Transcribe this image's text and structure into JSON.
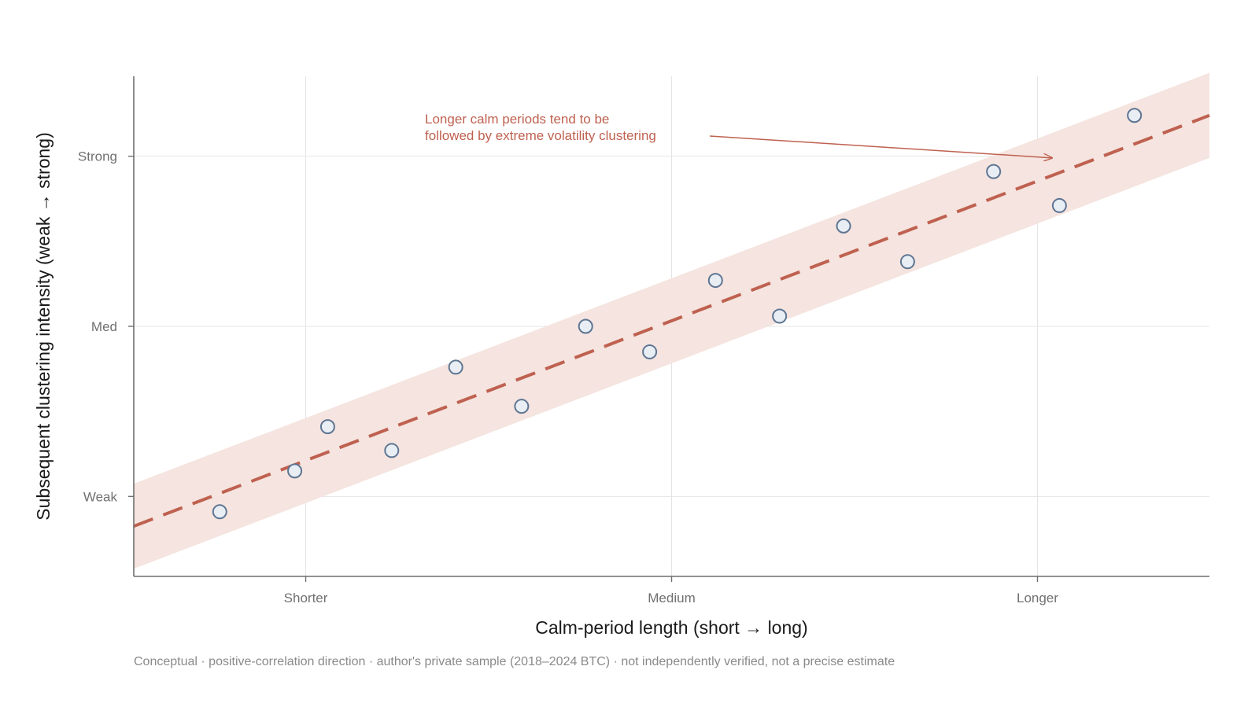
{
  "chart_data": {
    "type": "scatter",
    "xlabel": "Calm-period length (short → long)",
    "ylabel": "Subsequent clustering intensity (weak → strong)",
    "xlim": [
      -0.47,
      2.47
    ],
    "ylim": [
      -0.47,
      2.47
    ],
    "x_ticks": [
      {
        "value": 0,
        "label": "Shorter"
      },
      {
        "value": 1,
        "label": "Medium"
      },
      {
        "value": 2,
        "label": "Longer"
      }
    ],
    "y_ticks": [
      {
        "value": 0,
        "label": "Weak"
      },
      {
        "value": 1,
        "label": "Med"
      },
      {
        "value": 2,
        "label": "Strong"
      }
    ],
    "grid": true,
    "points": [
      {
        "x": -0.235,
        "y": -0.09
      },
      {
        "x": -0.03,
        "y": 0.15
      },
      {
        "x": 0.06,
        "y": 0.41
      },
      {
        "x": 0.235,
        "y": 0.27
      },
      {
        "x": 0.41,
        "y": 0.76
      },
      {
        "x": 0.59,
        "y": 0.53
      },
      {
        "x": 0.765,
        "y": 1.0
      },
      {
        "x": 0.94,
        "y": 0.85
      },
      {
        "x": 1.12,
        "y": 1.27
      },
      {
        "x": 1.295,
        "y": 1.06
      },
      {
        "x": 1.47,
        "y": 1.59
      },
      {
        "x": 1.645,
        "y": 1.38
      },
      {
        "x": 2.06,
        "y": 1.71
      },
      {
        "x": 1.88,
        "y": 1.91
      },
      {
        "x": 2.265,
        "y": 2.24
      }
    ],
    "trend_line": {
      "x": [
        -0.47,
        2.47
      ],
      "y": [
        -0.175,
        2.24
      ],
      "style": "dashed"
    },
    "band": {
      "half_width": 0.25
    },
    "annotation": {
      "lines": [
        "Longer calm periods tend to be",
        "followed by extreme volatility clustering"
      ],
      "arrow_target": {
        "x": 2.04,
        "y": 1.99
      }
    },
    "caption": "Conceptual · positive-correlation direction · author's private sample (2018–2024 BTC) · not independently verified, not a precise estimate"
  },
  "colors": {
    "accent": "#bf6150",
    "band": "#f5e4df",
    "point_fill": "#e9eef4",
    "point_stroke": "#5e7593",
    "axis": "#6f6f6f",
    "grid": "#e4e4e4"
  }
}
